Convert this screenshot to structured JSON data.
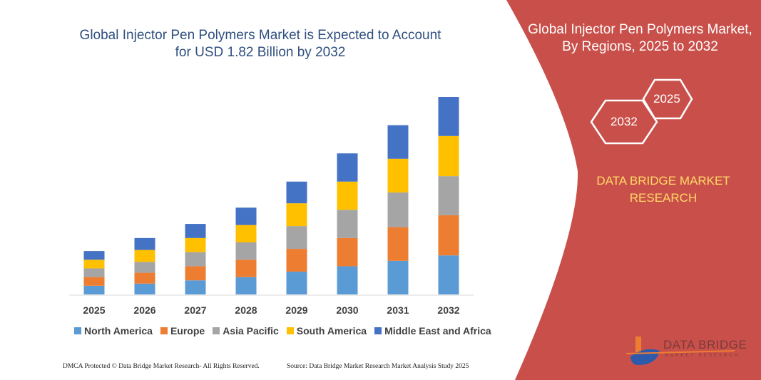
{
  "title": "Global Injector Pen Polymers Market is Expected to Account for USD 1.82 Billion by 2032",
  "title_line1": "Global Injector Pen Polymers Market is Expected to Account",
  "title_line2": "for USD 1.82 Billion by 2032",
  "side_panel": {
    "title_line1": "Global Injector Pen Polymers Market,",
    "title_line2": "By Regions, 2025 to 2032",
    "hex_start": "2025",
    "hex_end": "2032",
    "brand_line1": "DATA BRIDGE MARKET",
    "brand_line2": "RESEARCH",
    "logo": "DATA BRIDGE",
    "logo_sub": "MARKET RESEARCH",
    "color": "#C9504A"
  },
  "footer": {
    "left": "DMCA Protected © Data Bridge Market Research- All Rights Reserved.",
    "right": "Source: Data Bridge Market Research Market Analysis Study 2025"
  },
  "chart_data": {
    "type": "bar",
    "stacked": true,
    "title": "Global Injector Pen Polymers Market is Expected to Account for USD 1.82 Billion by 2032",
    "categories": [
      "2025",
      "2026",
      "2027",
      "2028",
      "2029",
      "2030",
      "2031",
      "2032"
    ],
    "series": [
      {
        "name": "North America",
        "color": "#5B9BD5",
        "values": [
          0.08,
          0.1,
          0.13,
          0.16,
          0.21,
          0.26,
          0.31,
          0.36
        ]
      },
      {
        "name": "Europe",
        "color": "#ED7D31",
        "values": [
          0.08,
          0.1,
          0.13,
          0.16,
          0.21,
          0.26,
          0.31,
          0.37
        ]
      },
      {
        "name": "Asia Pacific",
        "color": "#A5A5A5",
        "values": [
          0.08,
          0.1,
          0.13,
          0.16,
          0.21,
          0.26,
          0.32,
          0.36
        ]
      },
      {
        "name": "South America",
        "color": "#FFC000",
        "values": [
          0.08,
          0.11,
          0.13,
          0.16,
          0.21,
          0.26,
          0.31,
          0.37
        ]
      },
      {
        "name": "Middle East and Africa",
        "color": "#4472C4",
        "values": [
          0.08,
          0.11,
          0.13,
          0.16,
          0.2,
          0.26,
          0.31,
          0.36
        ]
      }
    ],
    "unit": "USD Billion",
    "ylim": [
      0,
      1.82
    ],
    "grid": false,
    "legend": "bottom"
  }
}
